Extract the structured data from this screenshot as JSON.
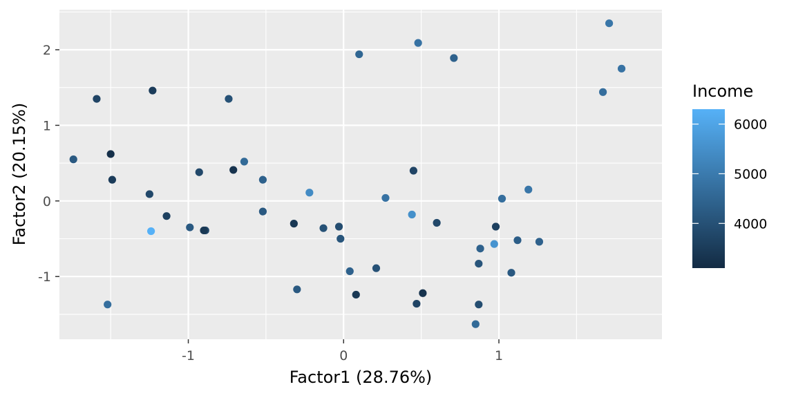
{
  "chart_data": {
    "type": "scatter",
    "xlabel": "Factor1 (28.76%)",
    "ylabel": "Factor2 (20.15%)",
    "xlim": [
      -1.83,
      2.05
    ],
    "ylim": [
      -1.83,
      2.53
    ],
    "x_ticks": [
      -1,
      0,
      1
    ],
    "x_tick_labels": [
      "-1",
      "0",
      "1"
    ],
    "y_ticks": [
      -1,
      0,
      1,
      2
    ],
    "y_tick_labels": [
      "-1",
      "0",
      "1",
      "2"
    ],
    "grid": true,
    "panel_background": "#ebebeb",
    "grid_color": "#ffffff",
    "color_legend": {
      "title": "Income",
      "position": "right",
      "range": [
        3100,
        6300
      ],
      "low_color": "#132b43",
      "high_color": "#56b1f7",
      "ticks": [
        4000,
        5000,
        6000
      ],
      "tick_labels": [
        "4000",
        "5000",
        "6000"
      ]
    },
    "points": [
      {
        "x": 1.71,
        "y": 2.35,
        "income": 4900
      },
      {
        "x": 1.79,
        "y": 1.75,
        "income": 4800
      },
      {
        "x": 1.67,
        "y": 1.44,
        "income": 4700
      },
      {
        "x": 0.48,
        "y": 2.09,
        "income": 4800
      },
      {
        "x": 0.1,
        "y": 1.94,
        "income": 4500
      },
      {
        "x": 0.71,
        "y": 1.89,
        "income": 4400
      },
      {
        "x": -1.59,
        "y": 1.35,
        "income": 3700
      },
      {
        "x": -1.23,
        "y": 1.46,
        "income": 3500
      },
      {
        "x": -0.74,
        "y": 1.35,
        "income": 4000
      },
      {
        "x": -1.74,
        "y": 0.55,
        "income": 4200
      },
      {
        "x": -1.5,
        "y": 0.62,
        "income": 3200
      },
      {
        "x": -1.49,
        "y": 0.28,
        "income": 3500
      },
      {
        "x": -0.93,
        "y": 0.38,
        "income": 3800
      },
      {
        "x": -0.71,
        "y": 0.41,
        "income": 3300
      },
      {
        "x": -0.64,
        "y": 0.52,
        "income": 4600
      },
      {
        "x": -0.52,
        "y": 0.28,
        "income": 4400
      },
      {
        "x": 0.45,
        "y": 0.4,
        "income": 3700
      },
      {
        "x": -1.25,
        "y": 0.09,
        "income": 3800
      },
      {
        "x": -1.14,
        "y": -0.2,
        "income": 3600
      },
      {
        "x": -1.24,
        "y": -0.4,
        "income": 6300
      },
      {
        "x": -0.99,
        "y": -0.35,
        "income": 4200
      },
      {
        "x": -0.89,
        "y": -0.39,
        "income": 3800
      },
      {
        "x": -0.9,
        "y": -0.39,
        "income": 3400
      },
      {
        "x": -0.52,
        "y": -0.14,
        "income": 4200
      },
      {
        "x": -0.22,
        "y": 0.11,
        "income": 5400
      },
      {
        "x": -0.32,
        "y": -0.3,
        "income": 3400
      },
      {
        "x": -0.13,
        "y": -0.36,
        "income": 4000
      },
      {
        "x": -0.03,
        "y": -0.34,
        "income": 3900
      },
      {
        "x": -0.02,
        "y": -0.5,
        "income": 4100
      },
      {
        "x": 0.27,
        "y": 0.04,
        "income": 4800
      },
      {
        "x": 0.44,
        "y": -0.18,
        "income": 5500
      },
      {
        "x": 0.6,
        "y": -0.29,
        "income": 3800
      },
      {
        "x": -0.3,
        "y": -1.17,
        "income": 4200
      },
      {
        "x": 0.04,
        "y": -0.93,
        "income": 4400
      },
      {
        "x": 0.21,
        "y": -0.89,
        "income": 4000
      },
      {
        "x": 0.08,
        "y": -1.24,
        "income": 3400
      },
      {
        "x": 0.47,
        "y": -1.36,
        "income": 3700
      },
      {
        "x": 0.51,
        "y": -1.22,
        "income": 3300
      },
      {
        "x": 0.97,
        "y": -0.57,
        "income": 5600
      },
      {
        "x": 0.98,
        "y": -0.34,
        "income": 3600
      },
      {
        "x": 1.02,
        "y": 0.03,
        "income": 4700
      },
      {
        "x": 1.19,
        "y": 0.15,
        "income": 4900
      },
      {
        "x": 0.88,
        "y": -0.63,
        "income": 4400
      },
      {
        "x": 0.87,
        "y": -0.83,
        "income": 4100
      },
      {
        "x": 1.12,
        "y": -0.52,
        "income": 4300
      },
      {
        "x": 1.26,
        "y": -0.54,
        "income": 4400
      },
      {
        "x": 1.08,
        "y": -0.95,
        "income": 4200
      },
      {
        "x": 0.87,
        "y": -1.37,
        "income": 3900
      },
      {
        "x": 0.85,
        "y": -1.63,
        "income": 4600
      },
      {
        "x": -1.52,
        "y": -1.37,
        "income": 4700
      }
    ]
  }
}
